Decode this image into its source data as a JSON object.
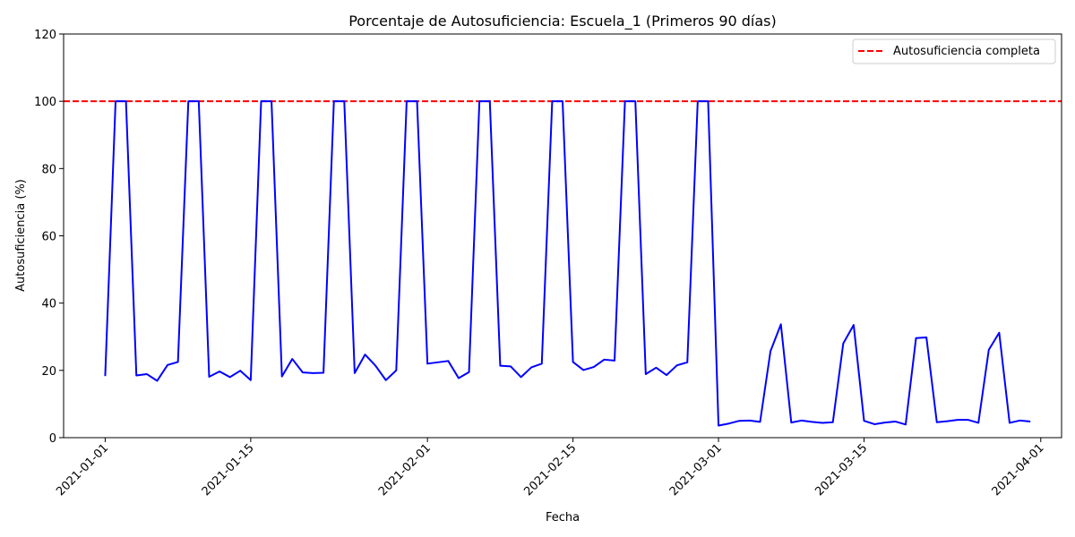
{
  "chart_data": {
    "type": "line",
    "title": "Porcentaje de Autosuficiencia: Escuela_1 (Primeros 90 días)",
    "xlabel": "Fecha",
    "ylabel": "Autosuficiencia (%)",
    "xlim": [
      "2020-12-28",
      "2021-04-03"
    ],
    "ylim": [
      0,
      120
    ],
    "x_ticks": [
      "2021-01-01",
      "2021-01-15",
      "2021-02-01",
      "2021-02-15",
      "2021-03-01",
      "2021-03-15",
      "2021-04-01"
    ],
    "y_ticks": [
      0,
      20,
      40,
      60,
      80,
      100,
      120
    ],
    "grid": false,
    "legend_position": "top-right",
    "colors": {
      "series": "#0000ff",
      "reference": "#ff0000"
    },
    "series": [
      {
        "x": [
          "2021-01-01",
          "2021-01-02",
          "2021-01-03",
          "2021-01-04",
          "2021-01-05",
          "2021-01-06",
          "2021-01-07",
          "2021-01-08",
          "2021-01-09",
          "2021-01-10",
          "2021-01-11",
          "2021-01-12",
          "2021-01-13",
          "2021-01-14",
          "2021-01-15",
          "2021-01-16",
          "2021-01-17",
          "2021-01-18",
          "2021-01-19",
          "2021-01-20",
          "2021-01-21",
          "2021-01-22",
          "2021-01-23",
          "2021-01-24",
          "2021-01-25",
          "2021-01-26",
          "2021-01-27",
          "2021-01-28",
          "2021-01-29",
          "2021-01-30",
          "2021-01-31",
          "2021-02-01",
          "2021-02-02",
          "2021-02-03",
          "2021-02-04",
          "2021-02-05",
          "2021-02-06",
          "2021-02-07",
          "2021-02-08",
          "2021-02-09",
          "2021-02-10",
          "2021-02-11",
          "2021-02-12",
          "2021-02-13",
          "2021-02-14",
          "2021-02-15",
          "2021-02-16",
          "2021-02-17",
          "2021-02-18",
          "2021-02-19",
          "2021-02-20",
          "2021-02-21",
          "2021-02-22",
          "2021-02-23",
          "2021-02-24",
          "2021-02-25",
          "2021-02-26",
          "2021-02-27",
          "2021-02-28",
          "2021-03-01",
          "2021-03-02",
          "2021-03-03",
          "2021-03-04",
          "2021-03-05",
          "2021-03-06",
          "2021-03-07",
          "2021-03-08",
          "2021-03-09",
          "2021-03-10",
          "2021-03-11",
          "2021-03-12",
          "2021-03-13",
          "2021-03-14",
          "2021-03-15",
          "2021-03-16",
          "2021-03-17",
          "2021-03-18",
          "2021-03-19",
          "2021-03-20",
          "2021-03-21",
          "2021-03-22",
          "2021-03-23",
          "2021-03-24",
          "2021-03-25",
          "2021-03-26",
          "2021-03-27",
          "2021-03-28",
          "2021-03-29",
          "2021-03-30",
          "2021-03-31"
        ],
        "y": [
          18.3,
          100,
          100,
          18.5,
          18.9,
          16.9,
          21.6,
          22.5,
          100,
          100,
          18.1,
          19.7,
          18.0,
          19.9,
          17.1,
          100,
          100,
          18.2,
          23.4,
          19.4,
          19.2,
          19.3,
          100,
          100,
          19.2,
          24.7,
          21.4,
          17.1,
          20.0,
          100,
          100,
          22.0,
          22.4,
          22.8,
          17.7,
          19.5,
          100,
          100,
          21.4,
          21.2,
          18.0,
          20.9,
          22.0,
          100,
          100,
          22.5,
          20.1,
          21.0,
          23.2,
          22.9,
          100,
          100,
          18.9,
          20.8,
          18.6,
          21.5,
          22.4,
          100,
          100,
          3.6,
          4.2,
          5.0,
          5.1,
          4.7,
          25.7,
          33.7,
          4.5,
          5.1,
          4.7,
          4.4,
          4.6,
          28.0,
          33.5,
          5.0,
          4.0,
          4.5,
          4.8,
          3.9,
          29.6,
          29.8,
          4.6,
          4.9,
          5.3,
          5.3,
          4.4,
          26.1,
          31.2,
          4.4,
          5.1,
          4.8
        ]
      }
    ],
    "reference_lines": [
      {
        "axis": "y",
        "value": 100,
        "style": "dashed",
        "label": "Autosuficiencia completa"
      }
    ]
  }
}
